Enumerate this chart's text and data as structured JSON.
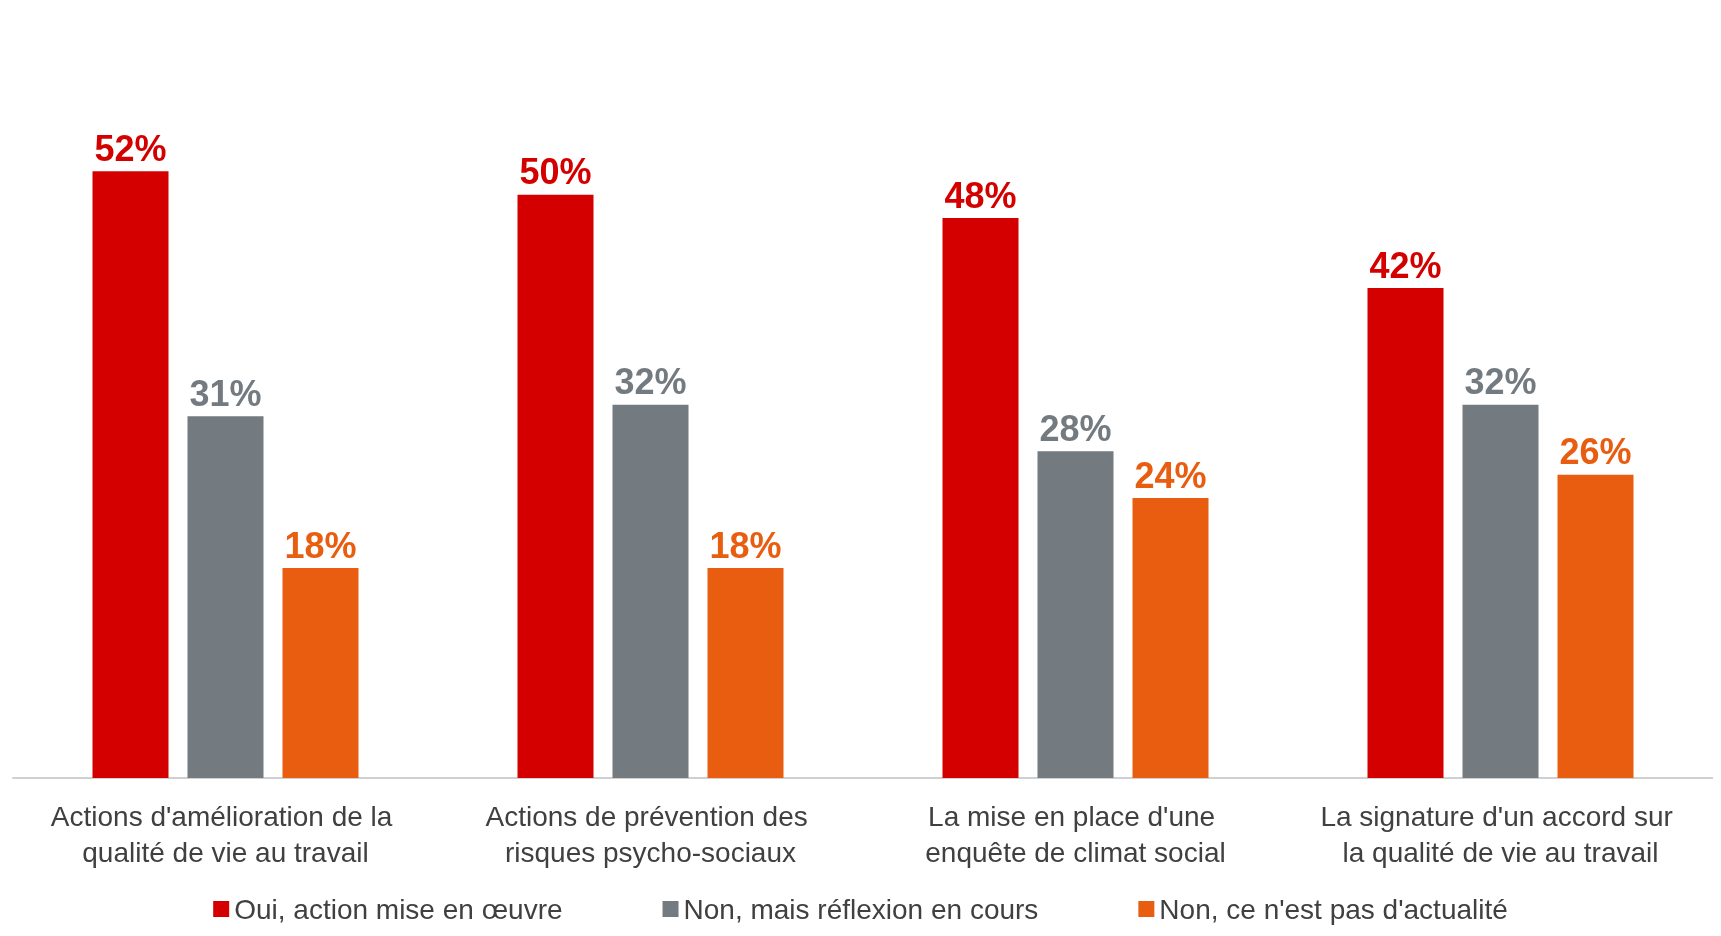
{
  "chart_data": {
    "type": "bar",
    "categories": [
      "Actions d'amélioration de la qualité de vie au travail",
      "Actions de prévention des risques psycho-sociaux",
      "La mise en place d'une enquête de climat social",
      "La signature d'un accord sur la qualité de vie au travail"
    ],
    "series": [
      {
        "name": "Oui, action mise en œuvre",
        "color": "#d40000",
        "values": [
          52,
          50,
          48,
          42
        ],
        "value_labels": [
          "52%",
          "50%",
          "48%",
          "42%"
        ]
      },
      {
        "name": "Non, mais réflexion en cours",
        "color": "#737a80",
        "values": [
          31,
          32,
          28,
          32
        ],
        "value_labels": [
          "31%",
          "32%",
          "28%",
          "32%"
        ]
      },
      {
        "name": "Non, ce n'est pas d'actualité",
        "color": "#e85d10",
        "values": [
          18,
          18,
          24,
          26
        ],
        "value_labels": [
          "18%",
          "18%",
          "24%",
          "26%"
        ]
      }
    ],
    "legend": "bottom",
    "grid": false
  }
}
